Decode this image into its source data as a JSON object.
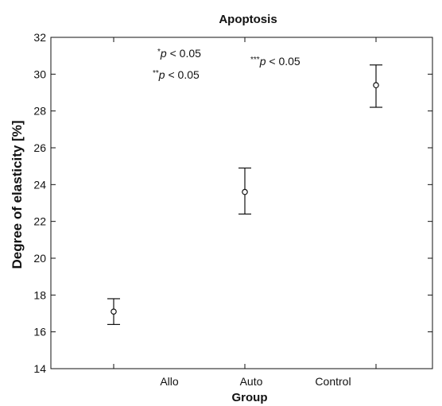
{
  "chart_data": {
    "type": "scatter",
    "title": "Apoptosis",
    "xlabel": "Group",
    "ylabel": "Degree of elasticity [%]",
    "ylim": [
      14,
      32
    ],
    "yticks": [
      "14",
      "16",
      "18",
      "20",
      "22",
      "24",
      "26",
      "28",
      "30",
      "32"
    ],
    "categories": [
      "Allo",
      "Auto",
      "Control"
    ],
    "points": [
      {
        "group": "Allo",
        "mean": 17.1,
        "lower": 16.4,
        "upper": 17.8
      },
      {
        "group": "Auto",
        "mean": 23.6,
        "lower": 22.4,
        "upper": 24.9
      },
      {
        "group": "Control",
        "mean": 29.4,
        "lower": 28.2,
        "upper": 30.5
      }
    ],
    "annotations": [
      {
        "stars": "*",
        "text": "p < 0.05"
      },
      {
        "stars": "**",
        "text": "p < 0.05"
      },
      {
        "stars": "***",
        "text": "p < 0.05"
      }
    ],
    "grid": false,
    "legend": "none",
    "marker_color": "#111111"
  }
}
